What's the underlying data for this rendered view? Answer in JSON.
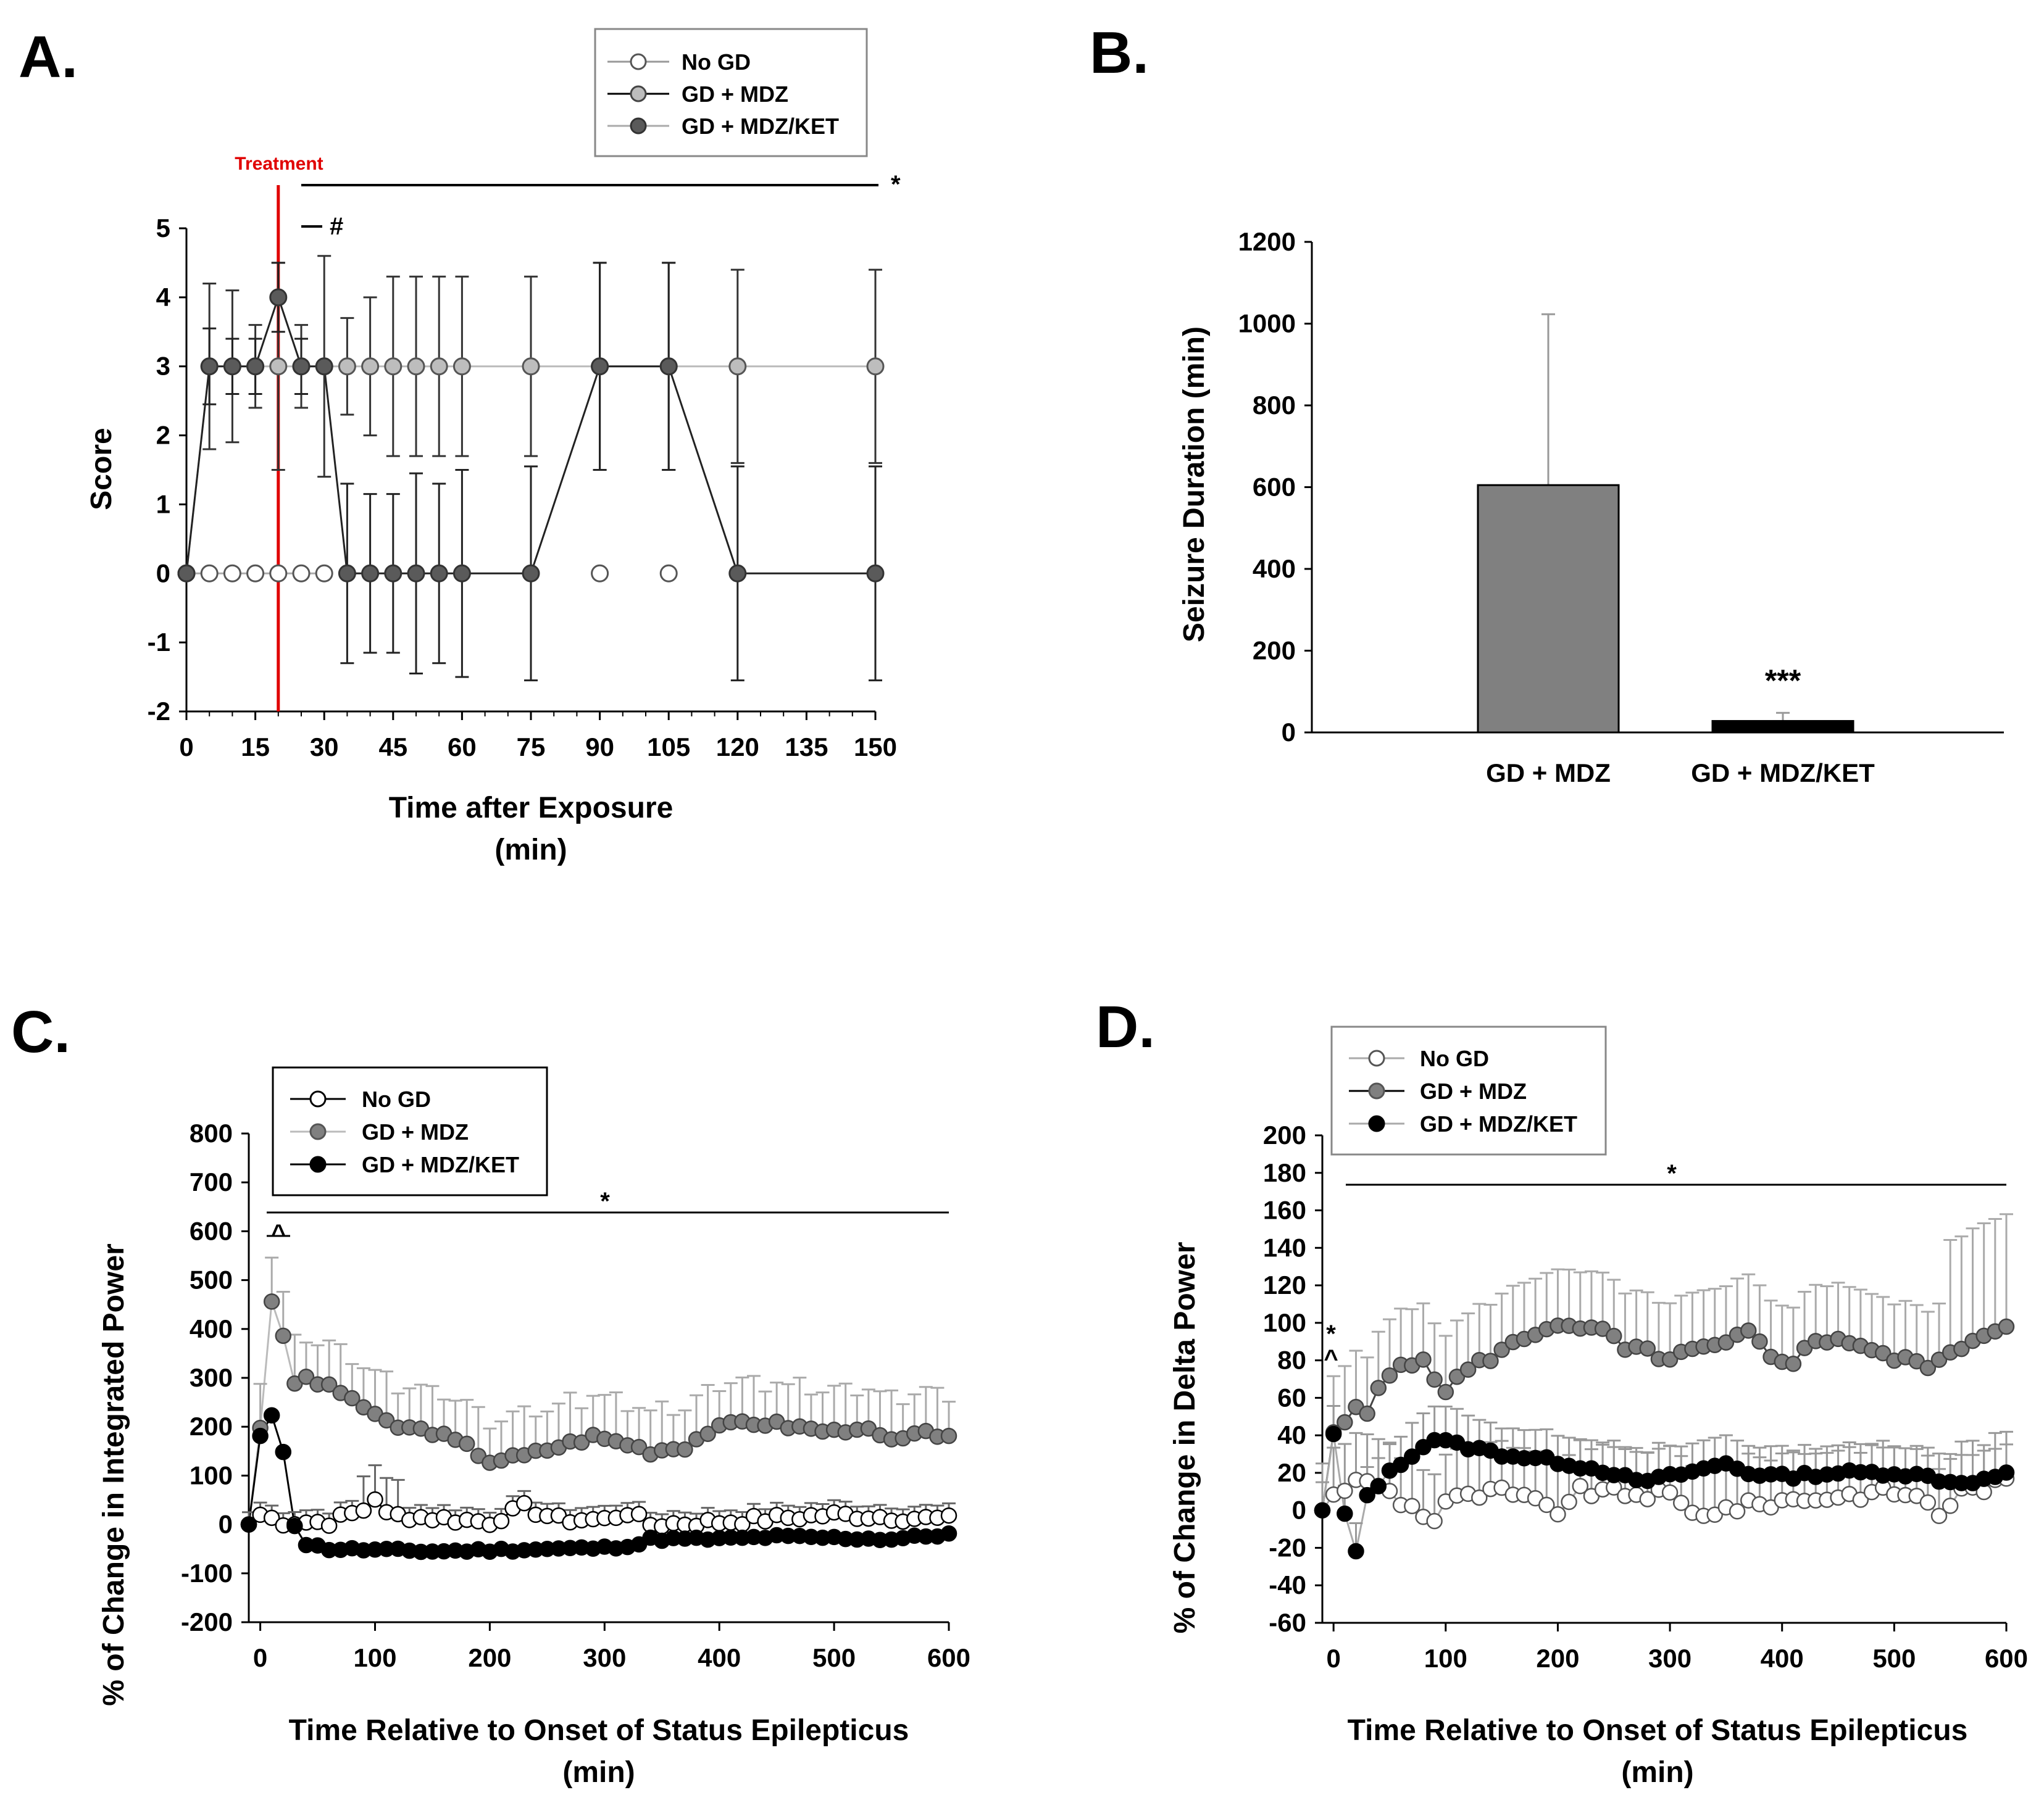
{
  "colors": {
    "no_gd": "#ffffff",
    "gd_mdz": "#bdbdbd",
    "gd_mdz_ket": "#5a5a5a",
    "gd_mdz_dark": "#808080",
    "bar_mdz": "#808080",
    "bar_ket": "#000000",
    "treatment": "#e00000"
  },
  "chart_data": [
    {
      "panel": "A.",
      "type": "line",
      "title": "",
      "xlabel": "Time after Exposure",
      "xlabel_unit": "(min)",
      "ylabel": "Score",
      "xlim": [
        0,
        150
      ],
      "ylim": [
        -2,
        5
      ],
      "xticks": [
        "0",
        "15",
        "30",
        "45",
        "60",
        "75",
        "90",
        "105",
        "120",
        "135",
        "150"
      ],
      "yticks": [
        "5",
        "4",
        "3",
        "2",
        "1",
        "0",
        "-1",
        "-2"
      ],
      "treatment_label": "Treatment",
      "treatment_x": 20,
      "sig_star": "*",
      "sig_hash": "#",
      "legend": [
        "No GD",
        "GD + MDZ",
        "GD + MDZ/KET"
      ],
      "series": [
        {
          "name": "No GD",
          "x": [
            0,
            5,
            10,
            15,
            20,
            25,
            30
          ],
          "y": [
            0,
            0,
            0,
            0,
            0,
            0,
            0
          ]
        },
        {
          "name": "GD + MDZ",
          "x": [
            0,
            5,
            10,
            15,
            20,
            25,
            30,
            35,
            40,
            45,
            50,
            55,
            60,
            75,
            90,
            105,
            120,
            150
          ],
          "y": [
            0,
            3,
            3,
            3,
            3,
            3,
            3,
            3,
            3,
            3,
            3,
            3,
            3,
            3,
            3,
            3,
            3,
            3
          ],
          "err": [
            0,
            1.2,
            1.1,
            0.6,
            1.5,
            0.6,
            1.6,
            0.7,
            1,
            1.3,
            1.3,
            1.3,
            1.3,
            1.3,
            1.5,
            1.5,
            1.4,
            1.4
          ]
        },
        {
          "name": "GD + MDZ/KET",
          "x": [
            0,
            5,
            10,
            15,
            20,
            25,
            30,
            35,
            40,
            45,
            50,
            55,
            60,
            75,
            90,
            105,
            120,
            150
          ],
          "y": [
            0,
            3,
            3,
            3,
            4,
            3,
            3,
            0,
            0,
            0,
            0,
            0,
            0,
            0,
            3,
            3,
            0,
            0
          ],
          "err": [
            0,
            0.55,
            0.4,
            0.4,
            0.5,
            0.4,
            0,
            1.3,
            1.15,
            1.15,
            1.45,
            1.3,
            1.5,
            1.55,
            1.5,
            1.5,
            1.55,
            1.55
          ]
        }
      ]
    },
    {
      "panel": "B.",
      "type": "bar",
      "title": "",
      "xlabel": "",
      "ylabel": "Seizure Duration (min)",
      "ylim": [
        0,
        1200
      ],
      "yticks": [
        "1200",
        "1000",
        "800",
        "600",
        "400",
        "200",
        "0"
      ],
      "categories": [
        "GD + MDZ",
        "GD + MDZ/KET"
      ],
      "values": [
        605,
        28
      ],
      "errors": [
        418,
        20
      ],
      "annotation": "***"
    },
    {
      "panel": "C.",
      "type": "line",
      "title": "",
      "xlabel": "Time Relative to Onset of Status Epilepticus",
      "xlabel_unit": "(min)",
      "ylabel": "% of Change in Integrated Power",
      "xlim": [
        -10,
        600
      ],
      "ylim": [
        -200,
        800
      ],
      "xticks": [
        "0",
        "100",
        "200",
        "300",
        "400",
        "500",
        "600"
      ],
      "yticks": [
        "800",
        "700",
        "600",
        "500",
        "400",
        "300",
        "200",
        "100",
        "0",
        "-100",
        "-200"
      ],
      "sig_star": "*",
      "sig_caret": "^",
      "legend": [
        "No GD",
        "GD + MDZ",
        "GD + MDZ/KET"
      ]
    },
    {
      "panel": "D.",
      "type": "line",
      "title": "",
      "xlabel": "Time Relative to Onset of Status Epilepticus",
      "xlabel_unit": "(min)",
      "ylabel": "% of Change in Delta Power",
      "xlim": [
        -10,
        600
      ],
      "ylim": [
        -60,
        200
      ],
      "xticks": [
        "0",
        "100",
        "200",
        "300",
        "400",
        "500",
        "600"
      ],
      "yticks": [
        "200",
        "180",
        "160",
        "140",
        "120",
        "100",
        "80",
        "60",
        "40",
        "20",
        "0",
        "-20",
        "-40",
        "-60"
      ],
      "sig_star": "*",
      "sig_caret": "^",
      "sig_star_early": "*",
      "legend": [
        "No GD",
        "GD + MDZ",
        "GD + MDZ/KET"
      ]
    }
  ]
}
